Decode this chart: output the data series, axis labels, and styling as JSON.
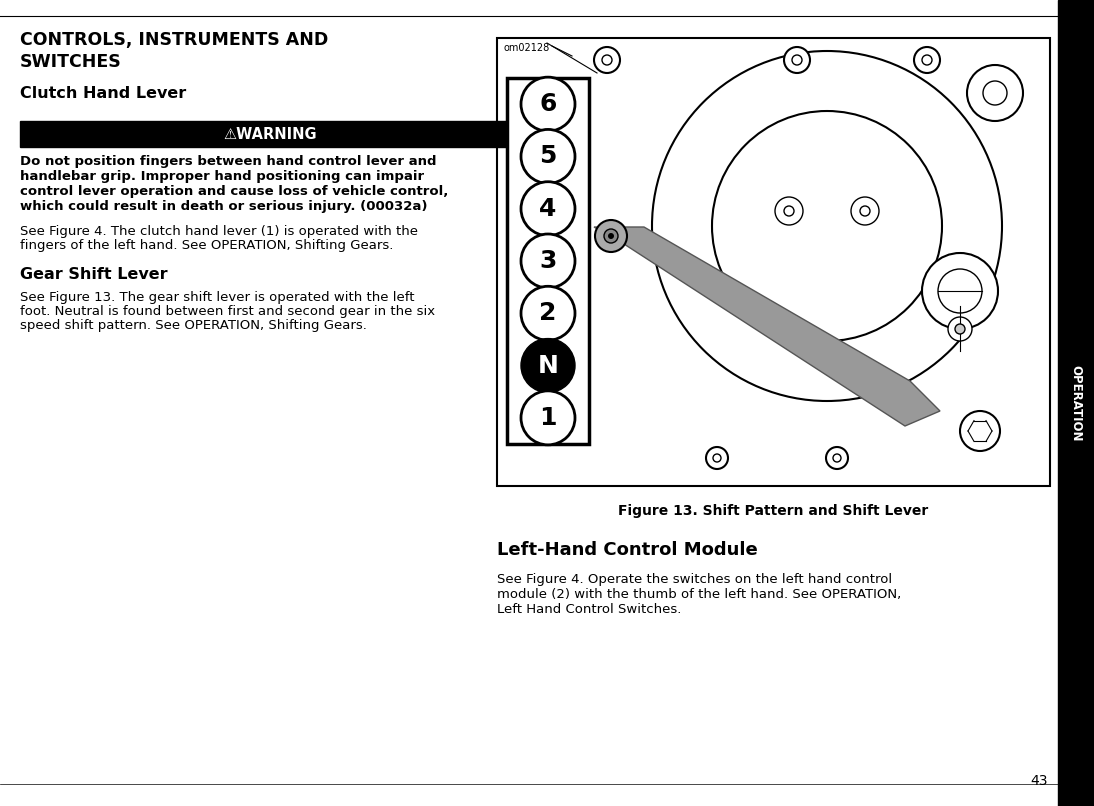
{
  "bg_color": "#ffffff",
  "main_title_line1": "CONTROLS, INSTRUMENTS AND",
  "main_title_line2": "SWITCHES",
  "section1_title": "Clutch Hand Lever",
  "warning_text": "⚠WARNING",
  "warning_lines": [
    "Do not position fingers between hand control lever and",
    "handlebar grip. Improper hand positioning can impair",
    "control lever operation and cause loss of vehicle control,",
    "which could result in death or serious injury. (00032a)"
  ],
  "body1_lines": [
    "See Figure 4. The clutch hand lever (1) is operated with the",
    "fingers of the left hand. See OPERATION, Shifting Gears."
  ],
  "section2_title": "Gear Shift Lever",
  "body2_lines": [
    "See Figure 13. The gear shift lever is operated with the left",
    "foot. Neutral is found between first and second gear in the six",
    "speed shift pattern. See OPERATION, Shifting Gears."
  ],
  "figure_caption": "Figure 13. Shift Pattern and Shift Lever",
  "section3_title": "Left-Hand Control Module",
  "body3_lines": [
    "See Figure 4. Operate the switches on the left hand control",
    "module (2) with the thumb of the left hand. See OPERATION,",
    "Left Hand Control Switches."
  ],
  "page_number": "43",
  "operation_label": "OPERATION",
  "figure_label": "om02128",
  "gear_numbers": [
    "6",
    "5",
    "4",
    "3",
    "2",
    "N",
    "1"
  ]
}
